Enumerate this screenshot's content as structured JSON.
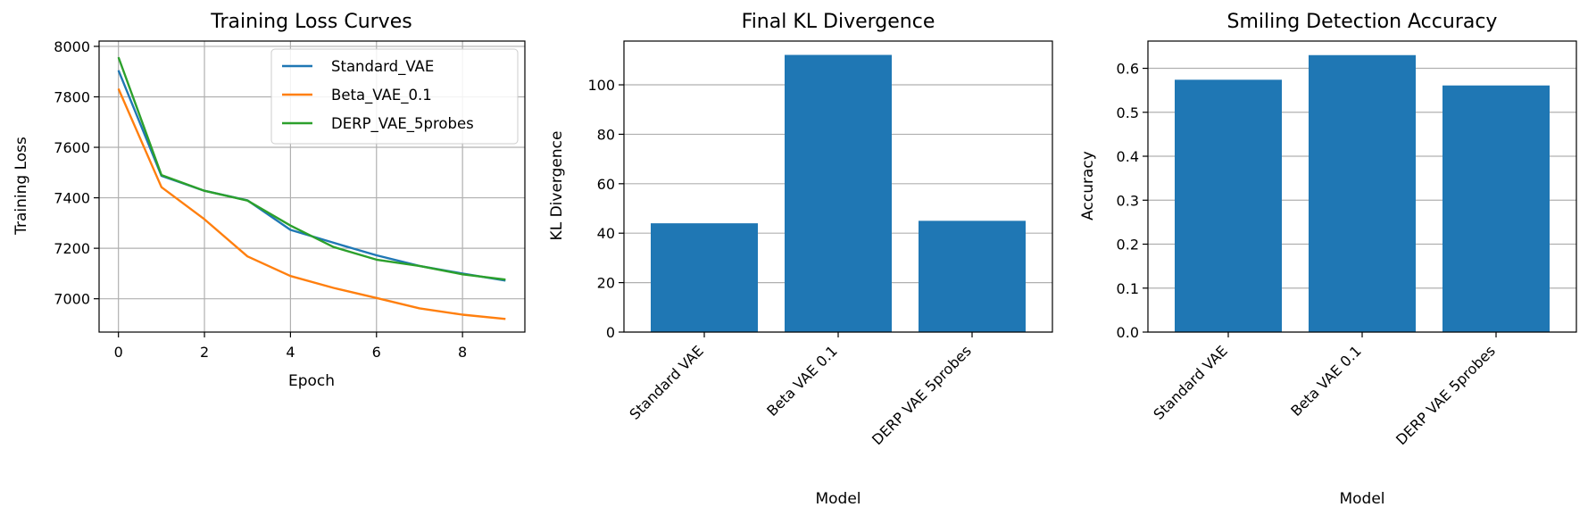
{
  "chart_data": [
    {
      "type": "line",
      "title": "Training Loss Curves",
      "xlabel": "Epoch",
      "ylabel": "Training Loss",
      "xlim": [
        -0.45,
        9.45
      ],
      "ylim": [
        6868,
        8021
      ],
      "xticks": [
        0,
        2,
        4,
        6,
        8
      ],
      "yticks": [
        7000,
        7200,
        7400,
        7600,
        7800,
        8000
      ],
      "grid": true,
      "legend": "top-right",
      "x": [
        0,
        1,
        2,
        3,
        4,
        5,
        6,
        7,
        8,
        9
      ],
      "series": [
        {
          "name": "Standard_VAE",
          "color": "#1f77b4",
          "values": [
            7905,
            7487,
            7428,
            7390,
            7273,
            7222,
            7172,
            7130,
            7100,
            7072
          ]
        },
        {
          "name": "Beta_VAE_0.1",
          "color": "#ff7f0e",
          "values": [
            7832,
            7442,
            7315,
            7168,
            7090,
            7043,
            7003,
            6962,
            6937,
            6920
          ]
        },
        {
          "name": "DERP_VAE_5probes",
          "color": "#2ca02c",
          "values": [
            7957,
            7490,
            7428,
            7389,
            7290,
            7205,
            7155,
            7130,
            7097,
            7076
          ]
        }
      ]
    },
    {
      "type": "bar",
      "title": "Final KL Divergence",
      "xlabel": "Model",
      "ylabel": "KL Divergence",
      "ylim": [
        0,
        117.7
      ],
      "yticks": [
        0,
        20,
        40,
        60,
        80,
        100
      ],
      "grid": true,
      "color": "#1f77b4",
      "categories": [
        "Standard VAE",
        "Beta VAE 0.1",
        "DERP VAE 5probes"
      ],
      "values": [
        44.0,
        112.1,
        45.0
      ]
    },
    {
      "type": "bar",
      "title": "Smiling Detection Accuracy",
      "xlabel": "Model",
      "ylabel": "Accuracy",
      "ylim": [
        0,
        0.662
      ],
      "yticks": [
        0.0,
        0.1,
        0.2,
        0.3,
        0.4,
        0.5,
        0.6
      ],
      "grid": true,
      "color": "#1f77b4",
      "categories": [
        "Standard VAE",
        "Beta VAE 0.1",
        "DERP VAE 5probes"
      ],
      "values": [
        0.574,
        0.63,
        0.561
      ]
    }
  ]
}
